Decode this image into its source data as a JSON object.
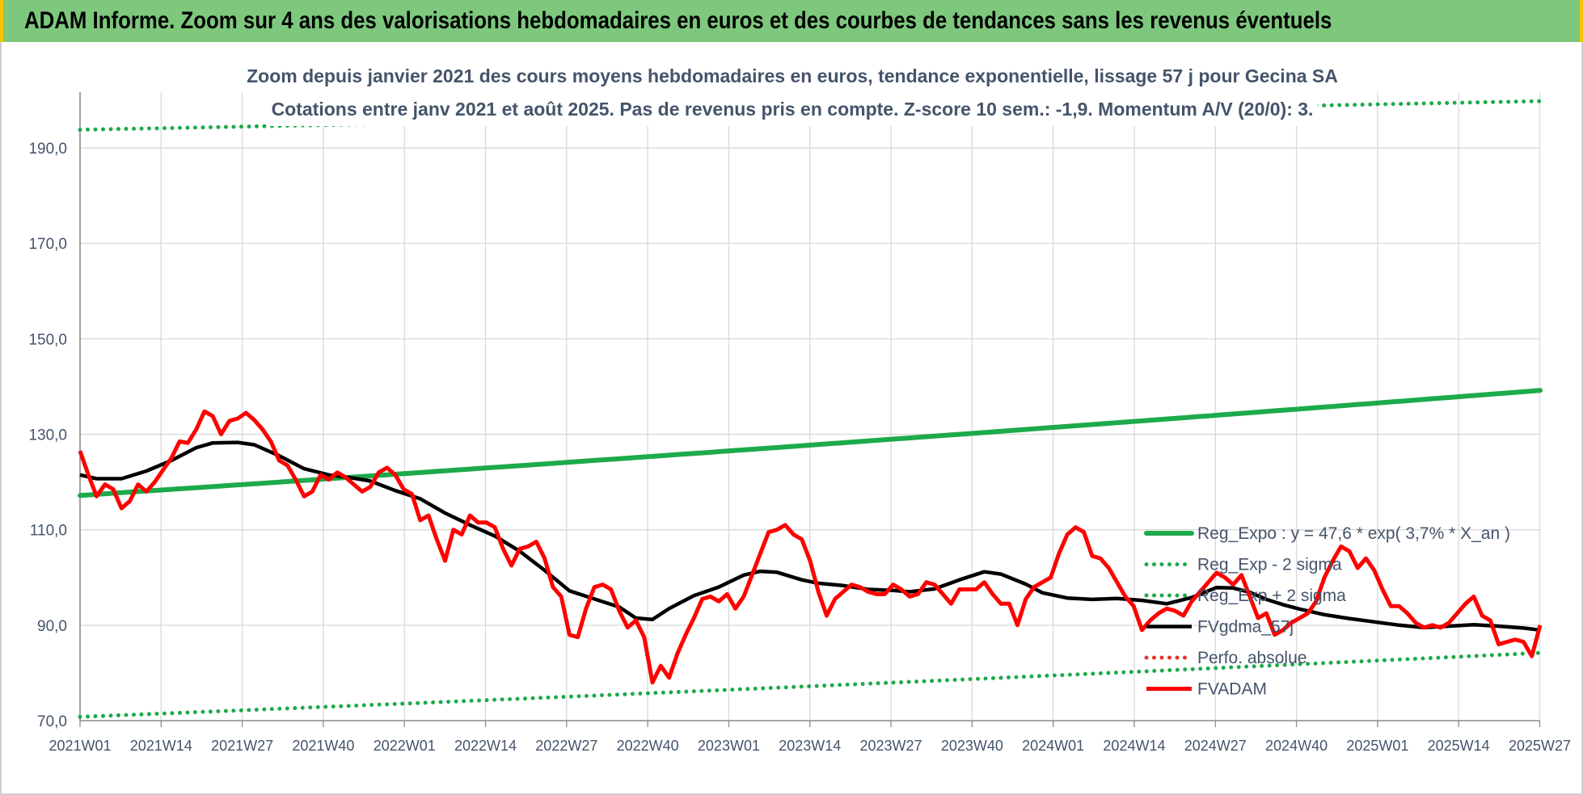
{
  "banner": {
    "title": "ADAM Informe. Zoom sur 4 ans des valorisations hebdomadaires en euros et des courbes de tendances sans les revenus éventuels"
  },
  "chart_data": {
    "type": "line",
    "title": "Zoom depuis janvier 2021 des cours moyens hebdomadaires en euros, tendance exponentielle, lissage 57 j pour Gecina SA",
    "subtitle": "Cotations entre janv 2021 et août 2025.  Pas de revenus pris en compte. Z-score 10 sem.: -1,9. Momentum A/V (20/0): 3.",
    "xlabel": "",
    "ylabel": "",
    "ylim": [
      70,
      200
    ],
    "yticks": [
      "70,0",
      "90,0",
      "110,0",
      "130,0",
      "150,0",
      "170,0",
      "190,0"
    ],
    "ytick_values": [
      70,
      90,
      110,
      130,
      150,
      170,
      190
    ],
    "xtick_labels": [
      "2021W01",
      "2021W14",
      "2021W27",
      "2021W40",
      "2022W01",
      "2022W14",
      "2022W27",
      "2022W40",
      "2023W01",
      "2023W14",
      "2023W27",
      "2023W40",
      "2024W01",
      "2024W14",
      "2024W27",
      "2024W40",
      "2025W01",
      "2025W14",
      "2025W27"
    ],
    "grid": true,
    "legend_position": "right",
    "n_weeks": 239,
    "series": [
      {
        "name": "Reg_Expo : y = 47,6 * exp( 3,7% *  X_an )",
        "color": "#1daa4b",
        "style": "solid",
        "points": [
          [
            0,
            117.2
          ],
          [
            238,
            139.2
          ]
        ]
      },
      {
        "name": "Reg_Exp - 2 sigma",
        "color": "#1daa4b",
        "style": "dotted",
        "points": [
          [
            0,
            70.8
          ],
          [
            238,
            84.2
          ]
        ]
      },
      {
        "name": "Reg_Exp + 2 sigma",
        "color": "#1daa4b",
        "style": "dotted",
        "points": [
          [
            0,
            193.8
          ],
          [
            238,
            199.8
          ]
        ]
      },
      {
        "name": "FVgdma_57j",
        "color": "#000000",
        "style": "solid",
        "points": [
          [
            0,
            121.5
          ],
          [
            4,
            120.7
          ],
          [
            10,
            120.7
          ],
          [
            16,
            122.3
          ],
          [
            22,
            124.5
          ],
          [
            28,
            127.2
          ],
          [
            32,
            128.2
          ],
          [
            38,
            128.3
          ],
          [
            42,
            127.8
          ],
          [
            48,
            125.5
          ],
          [
            54,
            122.8
          ],
          [
            60,
            121.5
          ],
          [
            66,
            120.8
          ],
          [
            70,
            120.2
          ],
          [
            76,
            118.2
          ],
          [
            82,
            116.5
          ],
          [
            88,
            113.5
          ],
          [
            94,
            111.0
          ],
          [
            100,
            108.7
          ],
          [
            106,
            105.5
          ],
          [
            112,
            101.5
          ],
          [
            118,
            97.2
          ],
          [
            124,
            95.5
          ],
          [
            130,
            93.8
          ],
          [
            134,
            91.5
          ],
          [
            138,
            91.2
          ],
          [
            142,
            93.5
          ],
          [
            148,
            96.2
          ],
          [
            154,
            98.0
          ],
          [
            160,
            100.5
          ],
          [
            164,
            101.3
          ],
          [
            168,
            101.1
          ],
          [
            174,
            99.5
          ],
          [
            178,
            98.8
          ],
          [
            184,
            98.3
          ],
          [
            190,
            97.5
          ],
          [
            196,
            97.3
          ],
          [
            200,
            97.0
          ],
          [
            206,
            97.6
          ],
          [
            212,
            99.5
          ],
          [
            218,
            101.2
          ],
          [
            222,
            100.7
          ],
          [
            228,
            98.6
          ],
          [
            232,
            96.8
          ],
          [
            238,
            95.7
          ],
          [
            244,
            95.4
          ],
          [
            250,
            95.6
          ],
          [
            256,
            95.2
          ],
          [
            262,
            94.5
          ],
          [
            268,
            95.8
          ],
          [
            274,
            97.9
          ],
          [
            278,
            97.8
          ],
          [
            282,
            96.9
          ],
          [
            286,
            95.4
          ],
          [
            290,
            94.3
          ],
          [
            294,
            93.4
          ],
          [
            300,
            92.2
          ],
          [
            306,
            91.4
          ],
          [
            312,
            90.7
          ],
          [
            318,
            90.0
          ],
          [
            324,
            89.5
          ],
          [
            330,
            89.8
          ],
          [
            336,
            90.1
          ],
          [
            342,
            89.8
          ],
          [
            348,
            89.4
          ],
          [
            352,
            89.0
          ]
        ]
      },
      {
        "name": "Perfo. absolue",
        "color": "#e8312a",
        "style": "dotted",
        "points": []
      },
      {
        "name": "FVADAM",
        "color": "#ff0000",
        "style": "solid",
        "points": [
          [
            0,
            126.5
          ],
          [
            2,
            121.5
          ],
          [
            4,
            117.0
          ],
          [
            6,
            119.5
          ],
          [
            8,
            118.5
          ],
          [
            10,
            114.5
          ],
          [
            12,
            116.0
          ],
          [
            14,
            119.5
          ],
          [
            16,
            118.0
          ],
          [
            18,
            120.0
          ],
          [
            20,
            122.5
          ],
          [
            22,
            125.0
          ],
          [
            24,
            128.5
          ],
          [
            26,
            128.2
          ],
          [
            28,
            131.0
          ],
          [
            30,
            134.8
          ],
          [
            32,
            133.8
          ],
          [
            34,
            130.0
          ],
          [
            36,
            132.8
          ],
          [
            38,
            133.3
          ],
          [
            40,
            134.5
          ],
          [
            42,
            133.0
          ],
          [
            44,
            131.0
          ],
          [
            46,
            128.5
          ],
          [
            48,
            124.5
          ],
          [
            50,
            123.5
          ],
          [
            52,
            120.5
          ],
          [
            54,
            117.0
          ],
          [
            56,
            118.0
          ],
          [
            58,
            121.5
          ],
          [
            60,
            120.5
          ],
          [
            62,
            122.0
          ],
          [
            64,
            121.0
          ],
          [
            66,
            119.5
          ],
          [
            68,
            118.0
          ],
          [
            70,
            119.0
          ],
          [
            72,
            122.0
          ],
          [
            74,
            123.0
          ],
          [
            76,
            121.5
          ],
          [
            78,
            118.5
          ],
          [
            80,
            117.5
          ],
          [
            82,
            112.0
          ],
          [
            84,
            113.0
          ],
          [
            86,
            108.0
          ],
          [
            88,
            103.5
          ],
          [
            90,
            110.0
          ],
          [
            92,
            109.0
          ],
          [
            94,
            113.0
          ],
          [
            96,
            111.5
          ],
          [
            98,
            111.5
          ],
          [
            100,
            110.5
          ],
          [
            102,
            106.0
          ],
          [
            104,
            102.5
          ],
          [
            106,
            106.0
          ],
          [
            108,
            106.5
          ],
          [
            110,
            107.5
          ],
          [
            112,
            104.0
          ],
          [
            114,
            98.0
          ],
          [
            116,
            96.0
          ],
          [
            118,
            88.0
          ],
          [
            120,
            87.5
          ],
          [
            122,
            93.5
          ],
          [
            124,
            98.0
          ],
          [
            126,
            98.5
          ],
          [
            128,
            97.5
          ],
          [
            130,
            93.0
          ],
          [
            132,
            89.5
          ],
          [
            134,
            91.0
          ],
          [
            136,
            87.5
          ],
          [
            138,
            78.0
          ],
          [
            140,
            81.5
          ],
          [
            142,
            79.0
          ],
          [
            144,
            84.0
          ],
          [
            146,
            88.0
          ],
          [
            148,
            91.5
          ],
          [
            150,
            95.5
          ],
          [
            152,
            96.0
          ],
          [
            154,
            95.0
          ],
          [
            156,
            96.5
          ],
          [
            158,
            93.5
          ],
          [
            160,
            96.0
          ],
          [
            162,
            100.5
          ],
          [
            164,
            105.0
          ],
          [
            166,
            109.5
          ],
          [
            168,
            110.0
          ],
          [
            170,
            111.0
          ],
          [
            172,
            109.0
          ],
          [
            174,
            108.0
          ],
          [
            176,
            103.5
          ],
          [
            178,
            97.0
          ],
          [
            180,
            92.0
          ],
          [
            182,
            95.5
          ],
          [
            184,
            97.0
          ],
          [
            186,
            98.5
          ],
          [
            188,
            98.0
          ],
          [
            190,
            97.0
          ],
          [
            192,
            96.5
          ],
          [
            194,
            96.5
          ],
          [
            196,
            98.5
          ],
          [
            198,
            97.5
          ],
          [
            200,
            96.0
          ],
          [
            202,
            96.5
          ],
          [
            204,
            99.0
          ],
          [
            206,
            98.5
          ],
          [
            208,
            96.5
          ],
          [
            210,
            94.5
          ],
          [
            212,
            97.5
          ],
          [
            214,
            97.5
          ],
          [
            216,
            97.5
          ],
          [
            218,
            99.0
          ],
          [
            220,
            96.5
          ],
          [
            222,
            94.5
          ],
          [
            224,
            94.5
          ],
          [
            226,
            90.0
          ],
          [
            228,
            95.5
          ],
          [
            230,
            98.0
          ],
          [
            232,
            99.0
          ],
          [
            234,
            100.0
          ],
          [
            236,
            105.0
          ],
          [
            238,
            109.0
          ],
          [
            240,
            110.5
          ],
          [
            242,
            109.5
          ],
          [
            244,
            104.5
          ],
          [
            246,
            104.0
          ],
          [
            248,
            102.0
          ],
          [
            250,
            99.0
          ],
          [
            252,
            96.0
          ],
          [
            254,
            94.0
          ],
          [
            256,
            89.0
          ],
          [
            258,
            91.0
          ],
          [
            260,
            92.5
          ],
          [
            262,
            93.5
          ],
          [
            264,
            93.0
          ],
          [
            266,
            92.0
          ],
          [
            268,
            95.0
          ],
          [
            270,
            97.0
          ],
          [
            272,
            99.0
          ],
          [
            274,
            101.0
          ],
          [
            276,
            100.0
          ],
          [
            278,
            98.5
          ],
          [
            280,
            100.5
          ],
          [
            282,
            96.0
          ],
          [
            284,
            91.5
          ],
          [
            286,
            92.5
          ],
          [
            288,
            88.0
          ],
          [
            290,
            89.0
          ],
          [
            292,
            90.5
          ],
          [
            294,
            91.5
          ],
          [
            296,
            92.5
          ],
          [
            298,
            95.0
          ],
          [
            300,
            100.0
          ],
          [
            302,
            103.5
          ],
          [
            304,
            106.5
          ],
          [
            306,
            105.5
          ],
          [
            308,
            102.0
          ],
          [
            310,
            104.0
          ],
          [
            312,
            101.5
          ],
          [
            314,
            97.5
          ],
          [
            316,
            94.0
          ],
          [
            318,
            94.0
          ],
          [
            320,
            92.5
          ],
          [
            322,
            90.5
          ],
          [
            324,
            89.5
          ],
          [
            326,
            90.0
          ],
          [
            328,
            89.5
          ],
          [
            330,
            90.5
          ],
          [
            332,
            92.5
          ],
          [
            334,
            94.5
          ],
          [
            336,
            96.0
          ],
          [
            338,
            92.0
          ],
          [
            340,
            91.0
          ],
          [
            342,
            86.0
          ],
          [
            344,
            86.5
          ],
          [
            346,
            87.0
          ],
          [
            348,
            86.5
          ],
          [
            350,
            83.5
          ],
          [
            352,
            90.0
          ]
        ]
      }
    ]
  }
}
